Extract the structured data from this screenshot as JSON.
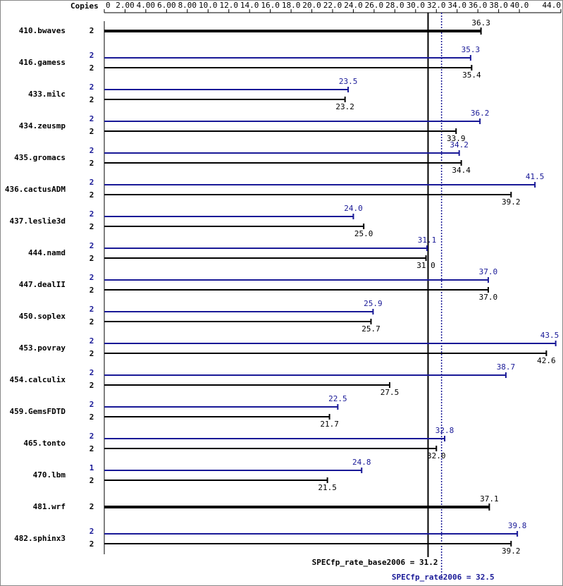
{
  "chart_data": {
    "type": "bar",
    "orientation": "horizontal",
    "copies_header": "Copies",
    "categories": [
      "410.bwaves",
      "416.gamess",
      "433.milc",
      "434.zeusmp",
      "435.gromacs",
      "436.cactusADM",
      "437.leslie3d",
      "444.namd",
      "447.dealII",
      "450.soplex",
      "453.povray",
      "454.calculix",
      "459.GemsFDTD",
      "465.tonto",
      "470.lbm",
      "481.wrf",
      "482.sphinx3"
    ],
    "series": [
      {
        "color": "#191997",
        "values": [
          null,
          35.3,
          23.5,
          36.2,
          34.2,
          41.5,
          24.0,
          31.1,
          37.0,
          25.9,
          43.5,
          38.7,
          22.5,
          32.8,
          24.8,
          null,
          39.8
        ],
        "value_labels": [
          null,
          "35.3",
          "23.5",
          "36.2",
          "34.2",
          "41.5",
          "24.0",
          "31.1",
          "37.0",
          "25.9",
          "43.5",
          "38.7",
          "22.5",
          "32.8",
          "24.8",
          null,
          "39.8"
        ],
        "copies": [
          null,
          2,
          2,
          2,
          2,
          2,
          2,
          2,
          2,
          2,
          2,
          2,
          2,
          2,
          1,
          null,
          2
        ]
      },
      {
        "color": "#000000",
        "values": [
          36.3,
          35.4,
          23.2,
          33.9,
          34.4,
          39.2,
          25.0,
          31.0,
          37.0,
          25.7,
          42.6,
          27.5,
          21.7,
          32.0,
          21.5,
          37.1,
          39.2
        ],
        "value_labels": [
          "36.3",
          "35.4",
          "23.2",
          "33.9",
          "34.4",
          "39.2",
          "25.0",
          "31.0",
          "37.0",
          "25.7",
          "42.6",
          "27.5",
          "21.7",
          "32.0",
          "21.5",
          "37.1",
          "39.2"
        ],
        "copies": [
          2,
          2,
          2,
          2,
          2,
          2,
          2,
          2,
          2,
          2,
          2,
          2,
          2,
          2,
          2,
          2,
          2
        ]
      }
    ],
    "xlim": [
      0,
      44
    ],
    "xticks": [
      0,
      {
        "value": 2,
        "label": "2.00"
      },
      {
        "value": 4,
        "label": "4.00"
      },
      {
        "value": 6,
        "label": "6.00"
      },
      {
        "value": 8,
        "label": "8.00"
      },
      {
        "value": 10,
        "label": "10.0"
      },
      {
        "value": 12,
        "label": "12.0"
      },
      {
        "value": 14,
        "label": "14.0"
      },
      {
        "value": 16,
        "label": "16.0"
      },
      {
        "value": 18,
        "label": "18.0"
      },
      {
        "value": 20,
        "label": "20.0"
      },
      {
        "value": 22,
        "label": "22.0"
      },
      {
        "value": 24,
        "label": "24.0"
      },
      {
        "value": 26,
        "label": "26.0"
      },
      {
        "value": 28,
        "label": "28.0"
      },
      {
        "value": 30,
        "label": "30.0"
      },
      {
        "value": 32,
        "label": "32.0"
      },
      {
        "value": 34,
        "label": "34.0"
      },
      {
        "value": 36,
        "label": "36.0"
      },
      {
        "value": 38,
        "label": "38.0"
      },
      {
        "value": 40,
        "label": "40.0"
      },
      {
        "value": 44,
        "label": "44.0"
      }
    ],
    "reference_lines": [
      {
        "label": "SPECfp_rate_base2006 = ",
        "value": 31.2,
        "color": "#000000",
        "style": "solid"
      },
      {
        "label": "SPECfp_rate2006 = ",
        "value": 32.5,
        "color": "#191997",
        "style": "dotted"
      }
    ]
  }
}
